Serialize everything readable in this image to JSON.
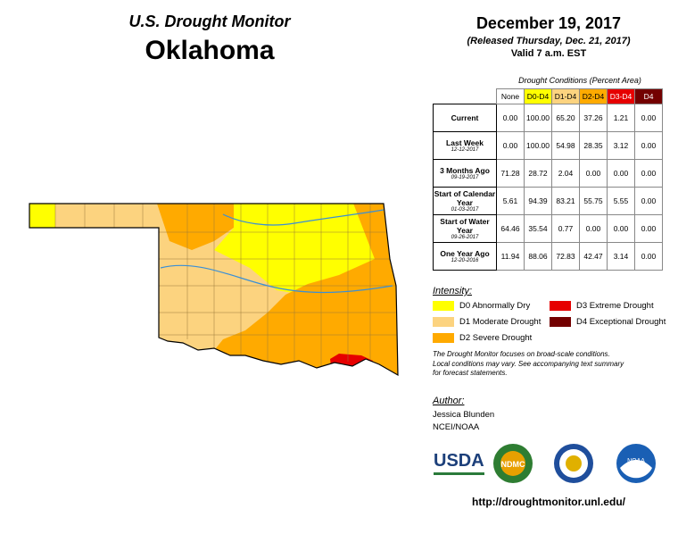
{
  "header": {
    "title": "U.S. Drought Monitor",
    "state": "Oklahoma",
    "date": "December 19, 2017",
    "released": "(Released Thursday, Dec. 21, 2017)",
    "valid": "Valid 7 a.m. EST"
  },
  "table": {
    "caption": "Drought Conditions (Percent Area)",
    "columns": [
      "None",
      "D0-D4",
      "D1-D4",
      "D2-D4",
      "D3-D4",
      "D4"
    ],
    "rows": [
      {
        "label": "Current",
        "date": "",
        "values": [
          "0.00",
          "100.00",
          "65.20",
          "37.26",
          "1.21",
          "0.00"
        ]
      },
      {
        "label": "Last Week",
        "date": "12-12-2017",
        "values": [
          "0.00",
          "100.00",
          "54.98",
          "28.35",
          "3.12",
          "0.00"
        ]
      },
      {
        "label": "3 Months Ago",
        "date": "09-19-2017",
        "values": [
          "71.28",
          "28.72",
          "2.04",
          "0.00",
          "0.00",
          "0.00"
        ]
      },
      {
        "label": "Start of Calendar Year",
        "date": "01-03-2017",
        "values": [
          "5.61",
          "94.39",
          "83.21",
          "55.75",
          "5.55",
          "0.00"
        ]
      },
      {
        "label": "Start of Water Year",
        "date": "09-26-2017",
        "values": [
          "64.46",
          "35.54",
          "0.77",
          "0.00",
          "0.00",
          "0.00"
        ]
      },
      {
        "label": "One Year Ago",
        "date": "12-20-2016",
        "values": [
          "11.94",
          "88.06",
          "72.83",
          "42.47",
          "3.14",
          "0.00"
        ]
      }
    ]
  },
  "legend": {
    "title": "Intensity:",
    "items": [
      {
        "label": "D0 Abnormally Dry",
        "color": "#ffff00"
      },
      {
        "label": "D1 Moderate Drought",
        "color": "#fcd37f"
      },
      {
        "label": "D2 Severe Drought",
        "color": "#ffaa00"
      },
      {
        "label": "D3 Extreme Drought",
        "color": "#e60000"
      },
      {
        "label": "D4 Exceptional Drought",
        "color": "#730000"
      }
    ]
  },
  "note": [
    "The Drought Monitor focuses on broad-scale conditions.",
    "Local conditions may vary. See accompanying text summary",
    "for forecast statements."
  ],
  "author": {
    "title": "Author:",
    "name": "Jessica Blunden",
    "org": "NCEI/NOAA"
  },
  "logos": {
    "usda": "USDA",
    "ndmc": "NDMC",
    "noaa": "NOAA"
  },
  "url": "http://droughtmonitor.unl.edu/"
}
